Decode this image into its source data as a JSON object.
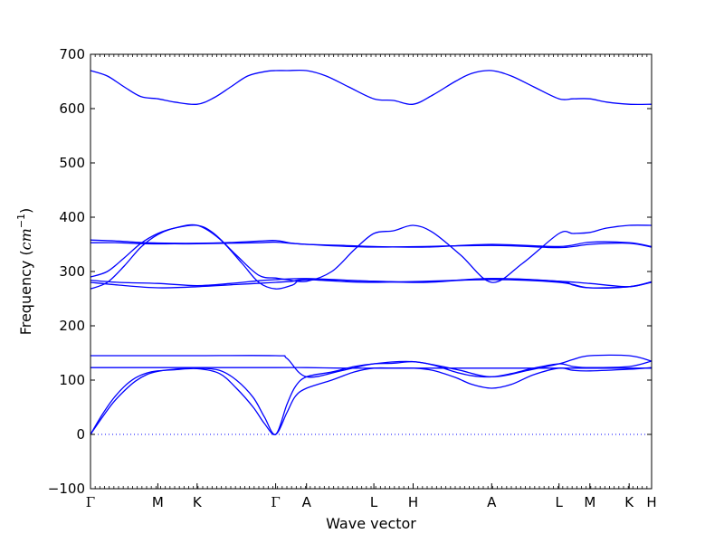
{
  "chart_data": {
    "type": "line",
    "title": "",
    "xlabel": "Wave vector",
    "ylabel": "Frequency",
    "ylabel_unit": "cm",
    "ylabel_unit_exp": "−1",
    "ylim": [
      -100,
      700
    ],
    "yticks": [
      -100,
      0,
      100,
      200,
      300,
      400,
      500,
      600,
      700
    ],
    "xlim": [
      0,
      10
    ],
    "xticks": [
      {
        "label": "Γ",
        "x": 0.0
      },
      {
        "label": "M",
        "x": 1.2
      },
      {
        "label": "K",
        "x": 1.9
      },
      {
        "label": "Γ",
        "x": 3.3
      },
      {
        "label": "A",
        "x": 3.85
      },
      {
        "label": "L",
        "x": 5.05
      },
      {
        "label": "H",
        "x": 5.75
      },
      {
        "label": "A",
        "x": 7.15
      },
      {
        "label": "L",
        "x": 8.35
      },
      {
        "label": "M",
        "x": 8.9
      },
      {
        "label": "K",
        "x": 9.6
      },
      {
        "label": "H",
        "x": 10.0
      }
    ],
    "zero_line": {
      "y": 0,
      "style": "dotted"
    },
    "line_color": "#0000ff",
    "grid": false,
    "legend": "none",
    "series": [
      {
        "x": [
          0,
          0.3,
          0.6,
          0.9,
          1.2,
          1.5,
          1.9,
          2.2,
          2.5,
          2.8,
          3.1,
          3.3,
          3.5,
          3.85,
          4.2,
          4.6,
          5.05,
          5.4,
          5.75,
          6.1,
          6.5,
          6.8,
          7.15,
          7.5,
          7.9,
          8.35,
          8.6,
          8.9,
          9.2,
          9.6,
          10.0
        ],
        "y": [
          670,
          660,
          640,
          622,
          618,
          612,
          608,
          620,
          640,
          660,
          668,
          670,
          670,
          670,
          660,
          640,
          618,
          615,
          608,
          625,
          650,
          665,
          670,
          660,
          640,
          618,
          618,
          618,
          612,
          608,
          608
        ]
      },
      {
        "x": [
          0,
          0.3,
          0.6,
          0.9,
          1.2,
          1.5,
          1.9,
          2.2,
          2.6,
          3.0,
          3.3,
          3.5,
          3.85,
          4.3,
          4.7,
          5.05,
          5.4,
          5.75,
          6.1,
          6.6,
          7.15,
          7.7,
          8.35,
          8.6,
          8.9,
          9.2,
          9.6,
          10.0
        ],
        "y": [
          290,
          300,
          325,
          352,
          370,
          380,
          385,
          370,
          330,
          293,
          288,
          285,
          282,
          300,
          340,
          370,
          375,
          385,
          372,
          330,
          280,
          315,
          370,
          370,
          372,
          380,
          385,
          385
        ]
      },
      {
        "x": [
          0,
          0.5,
          1.0,
          1.5,
          1.9,
          2.4,
          3.0,
          3.3,
          3.6,
          3.85,
          4.5,
          5.05,
          6.0,
          7.15,
          8.35,
          8.9,
          9.6,
          10.0
        ],
        "y": [
          358,
          356,
          353,
          352,
          352,
          353,
          356,
          357,
          352,
          350,
          348,
          346,
          345,
          350,
          346,
          354,
          353,
          346
        ]
      },
      {
        "x": [
          0,
          0.5,
          1.0,
          1.5,
          1.9,
          2.4,
          3.0,
          3.3,
          3.85,
          5.05,
          7.15,
          8.35,
          8.9,
          9.6,
          10.0
        ],
        "y": [
          353,
          353,
          351,
          351,
          351,
          352,
          353,
          354,
          350,
          345,
          348,
          344,
          350,
          352,
          345
        ]
      },
      {
        "x": [
          0,
          0.3,
          0.6,
          0.9,
          1.2,
          1.5,
          1.9,
          2.3,
          2.7,
          3.0,
          3.3,
          3.6,
          3.85,
          5.05,
          6.0,
          7.15,
          8.35,
          8.6,
          8.9,
          9.6,
          10.0
        ],
        "y": [
          268,
          280,
          310,
          345,
          368,
          380,
          385,
          360,
          315,
          280,
          268,
          275,
          285,
          282,
          280,
          287,
          282,
          275,
          270,
          272,
          281
        ]
      },
      {
        "x": [
          0,
          0.5,
          1.2,
          1.9,
          2.5,
          3.0,
          3.3,
          3.85,
          5.05,
          6.0,
          7.15,
          8.35,
          8.9,
          9.6,
          10.0
        ],
        "y": [
          284,
          280,
          278,
          274,
          278,
          283,
          285,
          287,
          282,
          281,
          287,
          282,
          278,
          272,
          281
        ]
      },
      {
        "x": [
          0,
          0.5,
          1.2,
          1.9,
          2.6,
          3.3,
          3.6,
          3.85,
          5.05,
          7.15,
          8.35,
          8.9,
          9.6,
          10.0
        ],
        "y": [
          280,
          275,
          270,
          272,
          276,
          280,
          282,
          285,
          280,
          285,
          280,
          270,
          272,
          280
        ]
      },
      {
        "x": [
          0,
          1.2,
          1.9,
          3.3,
          3.5,
          3.85,
          4.5,
          5.05,
          5.75,
          6.5,
          7.15,
          7.8,
          8.35,
          8.6,
          8.9,
          9.6,
          10.0
        ],
        "y": [
          145,
          145,
          145,
          145,
          140,
          106,
          118,
          130,
          134,
          120,
          106,
          118,
          130,
          138,
          145,
          145,
          135
        ]
      },
      {
        "x": [
          0,
          1.2,
          1.9,
          3.3,
          3.85,
          4.5,
          5.05,
          5.75,
          6.5,
          7.15,
          7.8,
          8.35,
          8.9,
          9.6,
          10.0
        ],
        "y": [
          123,
          123,
          123,
          123,
          123,
          122,
          122,
          122,
          122,
          122,
          122,
          122,
          122,
          122,
          122
        ]
      },
      {
        "x": [
          0,
          0.2,
          0.4,
          0.6,
          0.8,
          1.0,
          1.2,
          1.5,
          1.9,
          2.3,
          2.6,
          2.9,
          3.1,
          3.3,
          3.5,
          3.65,
          3.85,
          4.3,
          4.7,
          5.05,
          5.4,
          5.75,
          6.1,
          6.5,
          6.8,
          7.15,
          7.5,
          7.9,
          8.35,
          8.6,
          8.9,
          9.6,
          10.0
        ],
        "y": [
          0,
          35,
          65,
          88,
          104,
          113,
          117,
          119,
          121,
          112,
          85,
          50,
          20,
          0,
          40,
          70,
          85,
          100,
          115,
          122,
          122,
          122,
          118,
          105,
          92,
          85,
          92,
          110,
          122,
          118,
          117,
          120,
          123
        ]
      },
      {
        "x": [
          0,
          0.2,
          0.4,
          0.6,
          0.8,
          1.0,
          1.2,
          1.5,
          1.9,
          2.3,
          2.6,
          2.9,
          3.1,
          3.3,
          3.5,
          3.65,
          3.85,
          4.3,
          4.7,
          5.05,
          5.4,
          5.75,
          6.1,
          6.5,
          6.8,
          7.15,
          7.5,
          7.9,
          8.35,
          8.6,
          8.9,
          9.6,
          10.0
        ],
        "y": [
          0,
          30,
          58,
          80,
          98,
          110,
          116,
          120,
          122,
          118,
          100,
          68,
          32,
          0,
          55,
          88,
          106,
          115,
          125,
          130,
          131,
          134,
          128,
          115,
          108,
          106,
          112,
          122,
          130,
          125,
          123,
          125,
          135
        ]
      }
    ]
  }
}
